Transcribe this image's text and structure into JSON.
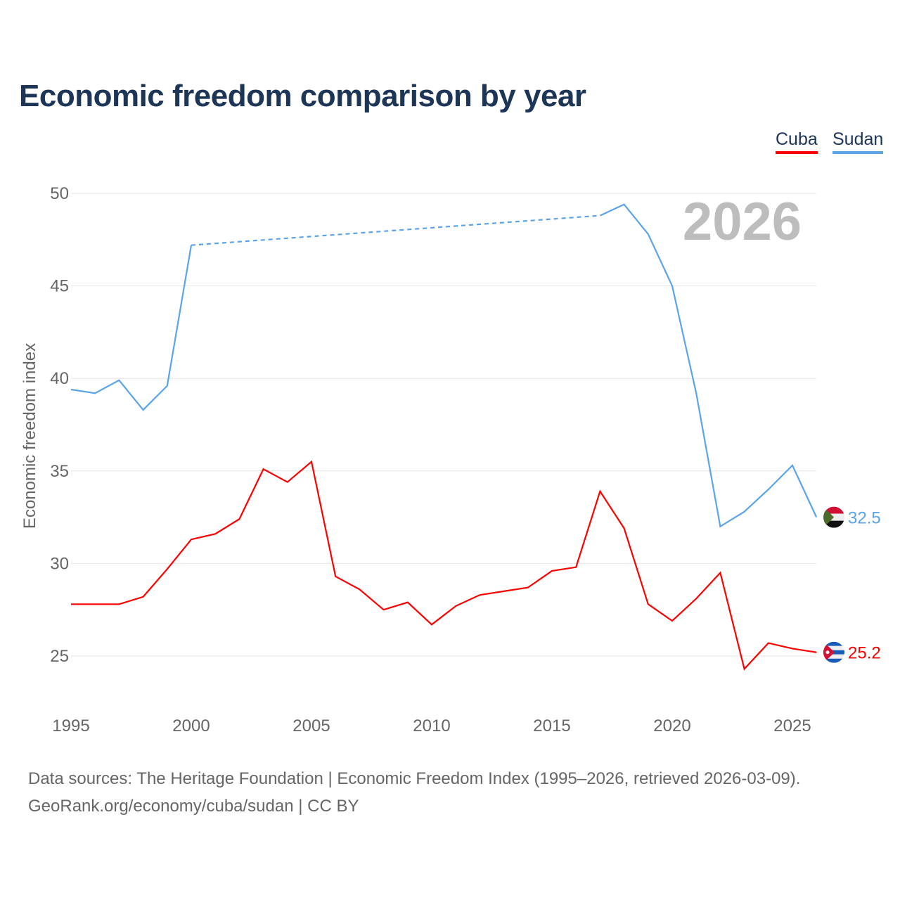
{
  "title": "Economic freedom comparison by year",
  "legend": [
    {
      "label": "Cuba",
      "color": "#ff0000"
    },
    {
      "label": "Sudan",
      "color": "#5ba4ea"
    }
  ],
  "year_watermark": "2026",
  "source_line1": "Data sources: The Heritage Foundation | Economic Freedom Index (1995–2026, retrieved 2026-03-09).",
  "source_line2": "GeoRank.org/economy/cuba/sudan | CC BY",
  "chart_data": {
    "type": "line",
    "title": "Economic freedom comparison by year",
    "xlabel": "",
    "ylabel": "Economic freedom index",
    "xlim": [
      1995,
      2026
    ],
    "ylim": [
      22.5,
      50
    ],
    "xticks": [
      1995,
      2000,
      2005,
      2010,
      2015,
      2020,
      2025
    ],
    "yticks": [
      25,
      30,
      35,
      40,
      45,
      50
    ],
    "grid": true,
    "legend_position": "top-right",
    "series": [
      {
        "name": "Cuba",
        "color": "#ff0000",
        "end_label": "25.2",
        "flag": "cuba",
        "x": [
          1995,
          1996,
          1997,
          1998,
          1999,
          2000,
          2001,
          2002,
          2003,
          2004,
          2005,
          2006,
          2007,
          2008,
          2009,
          2010,
          2011,
          2012,
          2013,
          2014,
          2015,
          2016,
          2017,
          2018,
          2019,
          2020,
          2021,
          2022,
          2023,
          2024,
          2025,
          2026
        ],
        "values": [
          27.8,
          27.8,
          27.8,
          28.2,
          29.7,
          31.3,
          31.6,
          32.4,
          35.1,
          34.4,
          35.5,
          29.3,
          28.6,
          27.5,
          27.9,
          26.7,
          27.7,
          28.3,
          28.5,
          28.7,
          29.6,
          29.8,
          33.9,
          31.9,
          27.8,
          26.9,
          28.1,
          29.5,
          24.3,
          25.7,
          25.4,
          25.2
        ]
      },
      {
        "name": "Sudan",
        "color": "#5ba4ea",
        "end_label": "32.5",
        "flag": "sudan",
        "x": [
          1995,
          1996,
          1997,
          1998,
          1999,
          2000,
          2017,
          2018,
          2019,
          2020,
          2021,
          2022,
          2023,
          2024,
          2025,
          2026
        ],
        "values": [
          39.4,
          39.2,
          39.9,
          38.3,
          39.6,
          47.2,
          48.8,
          49.4,
          47.8,
          45.0,
          39.2,
          32.0,
          32.8,
          34.0,
          35.3,
          32.5
        ],
        "gap": [
          2000,
          2017
        ]
      }
    ]
  }
}
